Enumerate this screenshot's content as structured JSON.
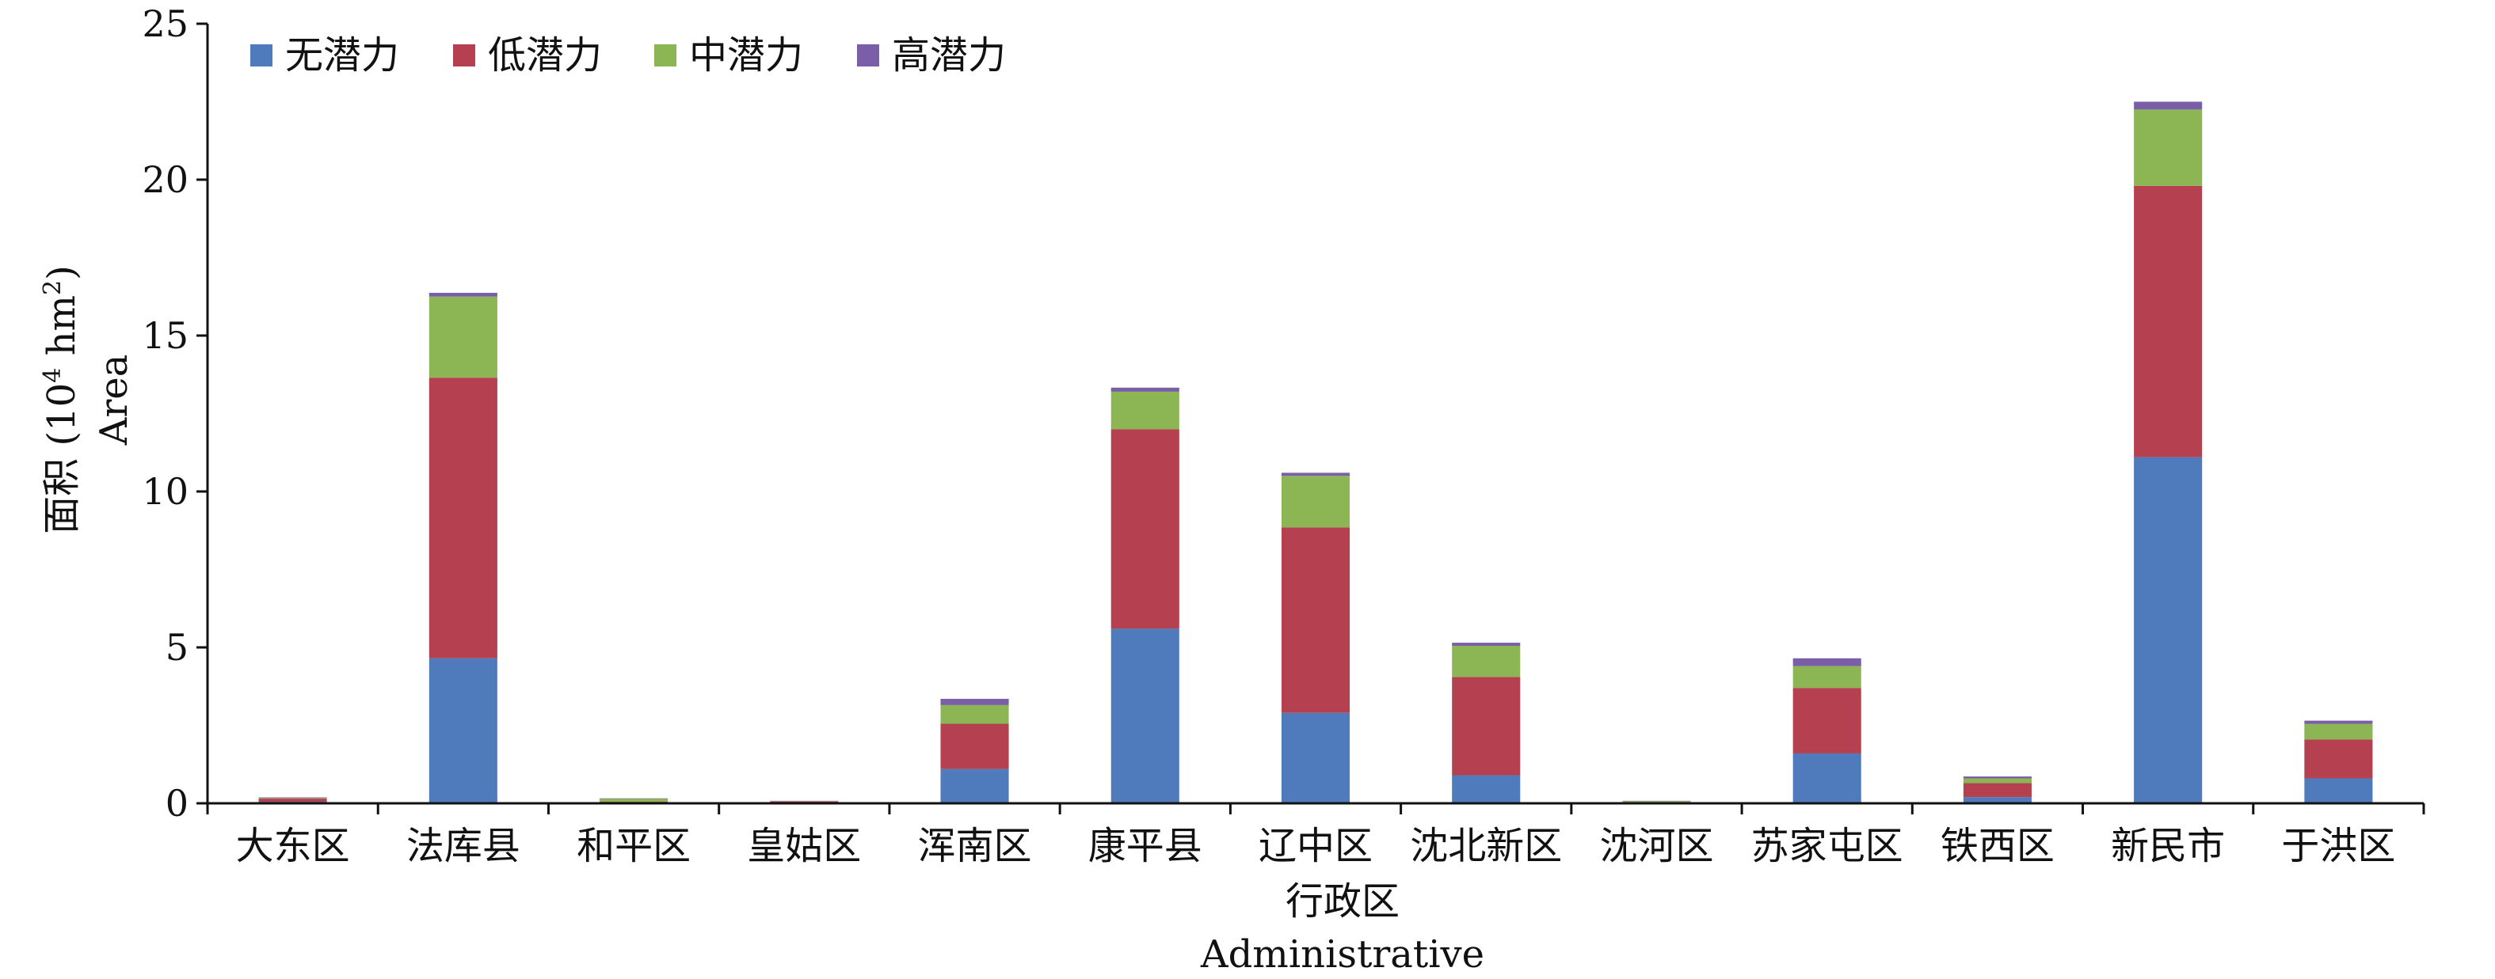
{
  "chart_data": {
    "type": "bar",
    "stacked": true,
    "title": "",
    "xlabel": "行政区",
    "xlabel_en": "Administrative",
    "ylabel": "面积 (10",
    "ylabel_sup4": "4",
    "ylabel_unit": " hm",
    "ylabel_sup2": "2",
    "ylabel_close": ")",
    "ylabel_en": "Area",
    "ylim": [
      0,
      25
    ],
    "yticks": [
      0,
      5,
      10,
      15,
      20,
      25
    ],
    "grid": false,
    "legend_position": "top-left",
    "categories": [
      "大东区",
      "法库县",
      "和平区",
      "皇姑区",
      "浑南区",
      "康平县",
      "辽中区",
      "沈北新区",
      "沈河区",
      "苏家屯区",
      "铁西区",
      "新民市",
      "于洪区"
    ],
    "series": [
      {
        "name": "无潜力",
        "color": "#4f7bbd",
        "values": [
          0.05,
          4.65,
          0.02,
          0.03,
          1.1,
          5.6,
          2.9,
          0.9,
          0.02,
          1.6,
          0.2,
          11.1,
          0.8
        ]
      },
      {
        "name": "低潜力",
        "color": "#b5404f",
        "values": [
          0.1,
          9.0,
          0.03,
          0.03,
          1.45,
          6.4,
          5.95,
          3.15,
          0.02,
          2.1,
          0.45,
          8.7,
          1.25
        ]
      },
      {
        "name": "中潜力",
        "color": "#8cb554",
        "values": [
          0.02,
          2.6,
          0.1,
          0.01,
          0.6,
          1.2,
          1.65,
          1.0,
          0.03,
          0.7,
          0.15,
          2.45,
          0.5
        ]
      },
      {
        "name": "高潜力",
        "color": "#7a5ea8",
        "values": [
          0.02,
          0.12,
          0.01,
          0.01,
          0.2,
          0.13,
          0.1,
          0.1,
          0.01,
          0.25,
          0.06,
          0.25,
          0.1
        ]
      }
    ]
  }
}
